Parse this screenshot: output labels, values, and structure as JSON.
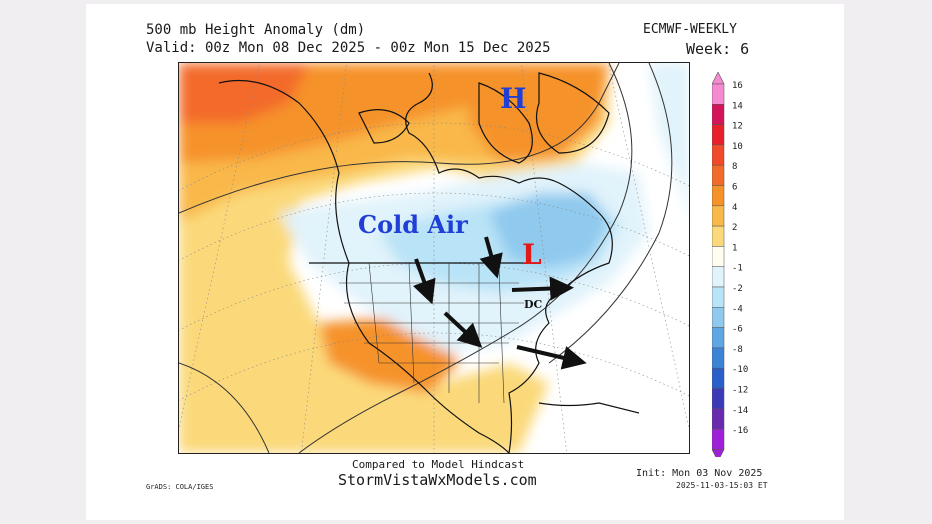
{
  "header": {
    "title": "500 mb Height Anomaly (dm)",
    "model": "ECMWF-WEEKLY",
    "valid": "Valid: 00z Mon 08 Dec 2025 - 00z Mon 15 Dec 2025",
    "week": "Week: 6"
  },
  "annotations": {
    "high": "H",
    "low": "L",
    "cold_air": "Cold Air",
    "dc": "DC"
  },
  "colorbar": {
    "labels": [
      "16",
      "14",
      "12",
      "10",
      "8",
      "6",
      "4",
      "2",
      "1",
      "-1",
      "-2",
      "-4",
      "-6",
      "-8",
      "-10",
      "-12",
      "-14",
      "-16"
    ],
    "colors": [
      "#f58ad0",
      "#d4145a",
      "#e8202a",
      "#f04a2a",
      "#f36b2a",
      "#f6922a",
      "#f9b84a",
      "#fbd97a",
      "#fffdf0",
      "#e1f3fb",
      "#b9e3f7",
      "#8fc9ee",
      "#5fa7e3",
      "#3a83d6",
      "#2a5fc9",
      "#3c3bb7",
      "#6a2ab0",
      "#a020d8"
    ]
  },
  "footer": {
    "compared": "Compared to Model Hindcast",
    "site": "StormVistaWxModels.com",
    "init": "Init: Mon 03 Nov 2025",
    "timestamp": "2025-11-03-15:03 ET",
    "credit": "GrADS: COLA/IGES"
  },
  "colors": {
    "high_label": "#1f3fd6",
    "low_label": "#e01818",
    "cold_air_label": "#1f3fd6",
    "arrow": "#111111"
  }
}
